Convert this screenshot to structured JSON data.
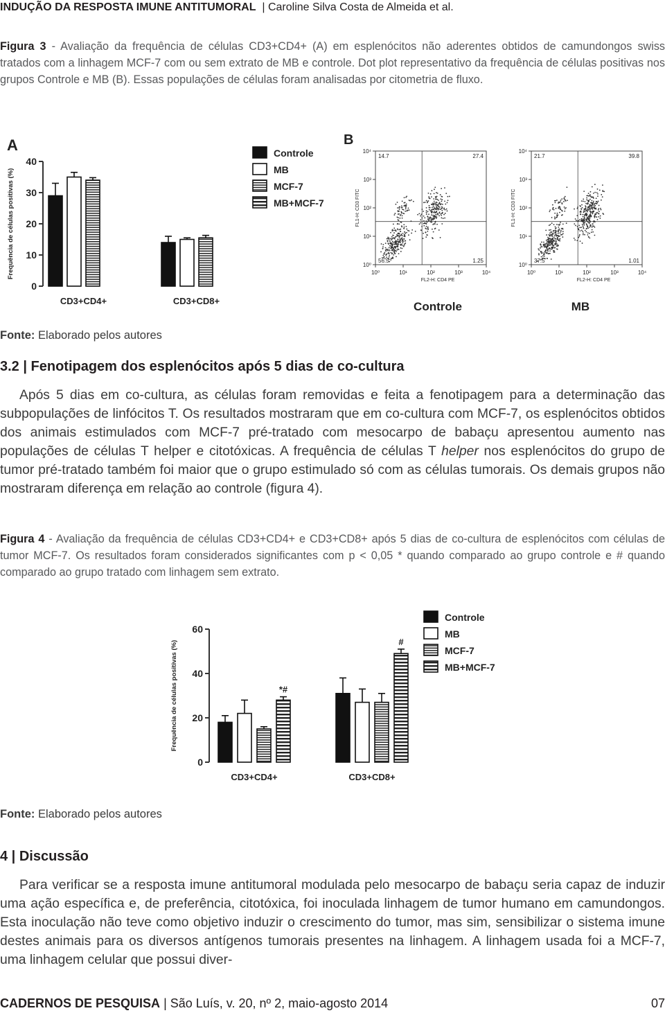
{
  "header": {
    "title": "INDUÇÃO DA RESPOSTA IMUNE ANTITUMORAL",
    "authors": "| Caroline Silva Costa de Almeida et al."
  },
  "figure3": {
    "caption_label": "Figura 3",
    "caption_text": "- Avaliação da frequência de células CD3+CD4+ (A) em esplenócitos não aderentes obtidos de camundongos swiss tratados com a linhagem MCF-7 com ou sem extrato de MB e controle. Dot plot representativo da frequência de células positivas nos grupos Controle e MB (B). Essas populações de células foram analisadas por citometria de fluxo.",
    "panel_a": {
      "type": "bar",
      "label": "A",
      "ylabel": "Frequência de células positivas (%)",
      "categories": [
        "CD3+CD4+",
        "CD3+CD8+"
      ],
      "ylim": [
        0,
        42
      ],
      "yticks": [
        0,
        10,
        20,
        30,
        40
      ],
      "series": [
        {
          "name": "Controle",
          "color": "#111111",
          "pattern": "solid",
          "values": [
            29,
            14
          ],
          "errors": [
            4,
            2
          ]
        },
        {
          "name": "MB",
          "color": "#ffffff",
          "pattern": "solid",
          "values": [
            35,
            15
          ],
          "errors": [
            1.5,
            0.5
          ]
        },
        {
          "name": "MCF-7",
          "color": "#ffffff",
          "pattern": "fine-lines",
          "values": [
            34,
            15.5
          ],
          "errors": [
            0.8,
            0.8
          ]
        },
        {
          "name": "MB+MCF-7",
          "color": "#ffffff",
          "pattern": "thick-lines",
          "values": [
            null,
            null
          ],
          "errors": [
            null,
            null
          ]
        }
      ]
    },
    "panel_b": {
      "label": "B",
      "xlabel": "FL2-H: CD4 PE",
      "ylabel": "FL1-H: CD3 FITC",
      "log": true,
      "xlim": [
        1,
        10000
      ],
      "ylim": [
        1,
        10000
      ],
      "xticks": [
        {
          "value": 1,
          "label": "10⁰"
        },
        {
          "value": 10,
          "label": "10¹"
        },
        {
          "value": 100,
          "label": "10²"
        },
        {
          "value": 1000,
          "label": "10³"
        },
        {
          "value": 10000,
          "label": "10⁴"
        }
      ],
      "yticks": [
        {
          "value": 1,
          "label": "10⁰"
        },
        {
          "value": 10,
          "label": "10¹"
        },
        {
          "value": 100,
          "label": "10²"
        },
        {
          "value": 1000,
          "label": "10³"
        },
        {
          "value": 10000,
          "label": "10⁴"
        }
      ],
      "plots": [
        {
          "title": "Controle",
          "quadrants": [
            "14.7",
            "27.4",
            "56.5",
            "1.25"
          ]
        },
        {
          "title": "MB",
          "quadrants": [
            "21.7",
            "39.8",
            "37.5",
            "1.01"
          ]
        }
      ]
    },
    "source_label": "Fonte:",
    "source_text": "Elaborado pelos autores"
  },
  "section_3_2": {
    "heading": "3.2 | Fenotipagem dos esplenócitos após 5 dias de co-cultura",
    "paragraph": [
      "Após 5 dias em co-cultura, as células foram removidas e feita a fenotipagem para a determinação das subpopulações de linfócitos T. Os resultados mostraram que em co-cultura com MCF-7, os esplenócitos obtidos dos animais estimulados com MCF-7 pré-tratado com mesocarpo de babaçu apresentou aumento nas populações de células T helper e citotóxicas. A frequência de células T ",
      "helper",
      " nos esplenócitos do grupo de tumor pré-tratado também foi maior que o grupo estimulado só com as células tumorais. Os demais grupos não mostraram diferença em relação ao controle (figura 4)."
    ]
  },
  "figure4": {
    "caption_label": "Figura 4",
    "caption_text": "- Avaliação da frequência de células CD3+CD4+ e CD3+CD8+ após 5 dias de co-cultura de esplenócitos com células de tumor MCF-7. Os resultados foram considerados significantes com p < 0,05 * quando comparado ao grupo controle e # quando comparado ao grupo tratado com linhagem sem extrato.",
    "chart": {
      "type": "bar",
      "ylabel": "Frequência de células positivas (%)",
      "categories": [
        "CD3+CD4+",
        "CD3+CD8+"
      ],
      "ylim": [
        0,
        65
      ],
      "yticks": [
        0,
        20,
        40,
        60
      ],
      "series": [
        {
          "name": "Controle",
          "color": "#111111",
          "pattern": "solid",
          "values": [
            18,
            31
          ],
          "errors": [
            3,
            7
          ]
        },
        {
          "name": "MB",
          "color": "#ffffff",
          "pattern": "solid",
          "values": [
            22,
            27
          ],
          "errors": [
            6,
            6
          ]
        },
        {
          "name": "MCF-7",
          "color": "#ffffff",
          "pattern": "fine-lines",
          "values": [
            15,
            27
          ],
          "errors": [
            1,
            4
          ]
        },
        {
          "name": "MB+MCF-7",
          "color": "#ffffff",
          "pattern": "thick-lines",
          "values": [
            28,
            49
          ],
          "errors": [
            1.5,
            2
          ],
          "markers": [
            "*#",
            "#"
          ]
        }
      ]
    },
    "source_label": "Fonte:",
    "source_text": "Elaborado pelos autores"
  },
  "section_4": {
    "heading": "4 | Discussão",
    "paragraph": "Para verificar se a resposta imune antitumoral modulada pelo mesocarpo de babaçu seria capaz de induzir uma ação específica e, de preferência, citotóxica, foi inoculada linhagem de tumor humano em camundongos. Esta inoculação não teve como objetivo induzir o crescimento do tumor, mas sim, sensibilizar o sistema imune destes animais para os diversos antígenos tumorais presentes na linhagem. A linhagem usada foi a MCF-7, uma linhagem celular que possui diver-"
  },
  "footer": {
    "journal": "CADERNOS DE PESQUISA",
    "issue": "| São Luís, v. 20, nº 2, maio-agosto 2014",
    "page": "07"
  }
}
